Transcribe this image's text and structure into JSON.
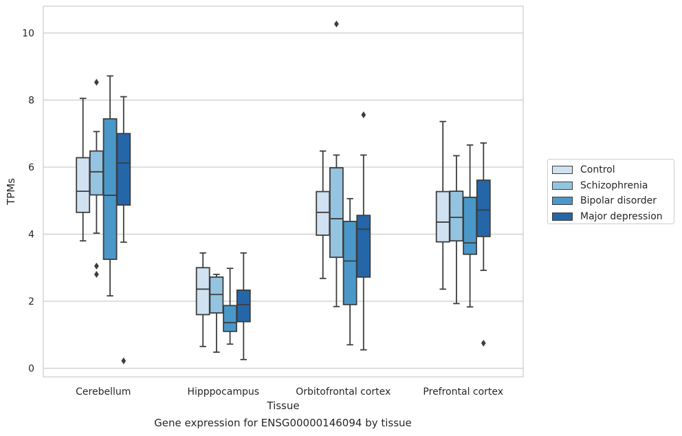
{
  "chart_data": {
    "type": "box",
    "title": "Gene expression for ENSG00000146094 by tissue",
    "xlabel": "Tissue",
    "ylabel": "TPMs",
    "ylim": [
      -0.25,
      10.8
    ],
    "yticks": [
      "0",
      "2",
      "4",
      "6",
      "8",
      "10"
    ],
    "grid": true,
    "legend_position": "right",
    "categories": [
      "Cerebellum",
      "Hipppocampus",
      "Orbitofrontal cortex",
      "Prefrontal cortex"
    ],
    "series": [
      {
        "name": "Control",
        "color": "#d0e1f2",
        "boxes": [
          {
            "whislo": 3.8,
            "q1": 4.65,
            "med": 5.28,
            "q3": 6.28,
            "whishi": 8.05,
            "fliers": []
          },
          {
            "whislo": 0.65,
            "q1": 1.6,
            "med": 2.36,
            "q3": 3.0,
            "whishi": 3.44,
            "fliers": []
          },
          {
            "whislo": 2.68,
            "q1": 3.97,
            "med": 4.65,
            "q3": 5.27,
            "whishi": 6.48,
            "fliers": []
          },
          {
            "whislo": 2.36,
            "q1": 3.77,
            "med": 4.36,
            "q3": 5.27,
            "whishi": 7.36,
            "fliers": []
          }
        ]
      },
      {
        "name": "Schizophrenia",
        "color": "#94c4df",
        "boxes": [
          {
            "whislo": 4.03,
            "q1": 5.17,
            "med": 5.86,
            "q3": 6.48,
            "whishi": 7.06,
            "fliers": [
              8.53,
              3.05,
              2.8
            ]
          },
          {
            "whislo": 0.48,
            "q1": 1.65,
            "med": 2.2,
            "q3": 2.72,
            "whishi": 2.8,
            "fliers": []
          },
          {
            "whislo": 1.84,
            "q1": 3.31,
            "med": 4.46,
            "q3": 5.98,
            "whishi": 6.36,
            "fliers": [
              10.27
            ]
          },
          {
            "whislo": 1.93,
            "q1": 3.8,
            "med": 4.5,
            "q3": 5.28,
            "whishi": 6.34,
            "fliers": []
          }
        ]
      },
      {
        "name": "Bipolar disorder",
        "color": "#4a98c9",
        "boxes": [
          {
            "whislo": 2.16,
            "q1": 3.25,
            "med": 5.16,
            "q3": 7.44,
            "whishi": 8.72,
            "fliers": []
          },
          {
            "whislo": 0.72,
            "q1": 1.1,
            "med": 1.36,
            "q3": 1.87,
            "whishi": 2.98,
            "fliers": []
          },
          {
            "whislo": 0.7,
            "q1": 1.9,
            "med": 3.2,
            "q3": 4.38,
            "whishi": 5.06,
            "fliers": []
          },
          {
            "whislo": 1.83,
            "q1": 3.4,
            "med": 3.74,
            "q3": 5.1,
            "whishi": 6.66,
            "fliers": []
          }
        ]
      },
      {
        "name": "Major depression",
        "color": "#2566a8",
        "boxes": [
          {
            "whislo": 3.76,
            "q1": 4.87,
            "med": 6.12,
            "q3": 7.0,
            "whishi": 8.1,
            "fliers": [
              0.22
            ]
          },
          {
            "whislo": 0.26,
            "q1": 1.39,
            "med": 1.9,
            "q3": 2.33,
            "whishi": 3.44,
            "fliers": []
          },
          {
            "whislo": 0.55,
            "q1": 2.72,
            "med": 4.15,
            "q3": 4.56,
            "whishi": 6.36,
            "fliers": [
              7.56
            ]
          },
          {
            "whislo": 2.92,
            "q1": 3.93,
            "med": 4.72,
            "q3": 5.61,
            "whishi": 6.72,
            "fliers": [
              0.75
            ]
          }
        ]
      }
    ]
  }
}
